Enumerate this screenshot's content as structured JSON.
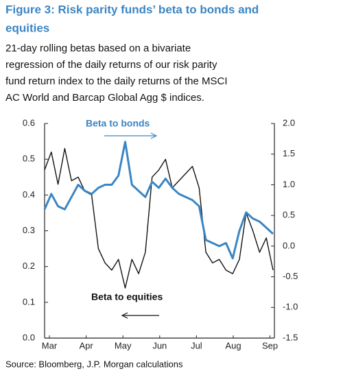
{
  "chart_data": {
    "type": "line",
    "title_lines": [
      "Figure 3: Risk parity funds’ beta to bonds and",
      "equities"
    ],
    "subtitle_lines": [
      "21-day rolling betas based on a bivariate",
      "regression of the daily returns of our risk parity",
      "fund return index to the daily returns of the MSCI",
      "AC World and Barcap Global Agg $ indices."
    ],
    "xtick_labels": [
      "Mar",
      "Apr",
      "May",
      "Jun",
      "Jul",
      "Aug",
      "Sep"
    ],
    "series": [
      {
        "name": "Beta to equities",
        "color": "#111111",
        "axis": "y",
        "values": [
          0.47,
          0.52,
          0.43,
          0.53,
          0.44,
          0.45,
          0.41,
          0.4,
          0.25,
          0.21,
          0.19,
          0.22,
          0.14,
          0.22,
          0.18,
          0.24,
          0.45,
          0.47,
          0.5,
          0.42,
          0.44,
          0.46,
          0.48,
          0.42,
          0.24,
          0.21,
          0.22,
          0.19,
          0.18,
          0.22,
          0.35,
          0.3,
          0.24,
          0.28,
          0.19
        ]
      },
      {
        "name": "Beta to bonds",
        "color": "#3a85c3",
        "axis": "y2",
        "values": [
          0.6,
          0.85,
          0.65,
          0.6,
          0.8,
          1.0,
          0.9,
          0.85,
          0.95,
          1.0,
          1.0,
          1.15,
          1.7,
          1.0,
          0.9,
          0.8,
          1.05,
          0.95,
          1.1,
          0.95,
          0.85,
          0.8,
          0.75,
          0.65,
          0.1,
          0.05,
          0.0,
          0.05,
          -0.2,
          0.25,
          0.55,
          0.45,
          0.4,
          0.3,
          0.2
        ]
      }
    ],
    "ylim": [
      0,
      0.6
    ],
    "yticks": [
      {
        "value": 0,
        "label": "0.0"
      },
      0.1,
      0.2,
      0.3,
      0.4,
      0.5,
      0.6
    ],
    "y2lim": [
      -1.5,
      2.0
    ],
    "y2ticks": [
      -1.5,
      {
        "value": -1.0,
        "label": "-1.0"
      },
      -0.5,
      {
        "value": 0,
        "label": "0.0"
      },
      0.5,
      {
        "value": 1.0,
        "label": "1.0"
      },
      1.5,
      {
        "value": 2.0,
        "label": "2.0"
      }
    ],
    "source": "Source: Bloomberg, J.P. Morgan calculations"
  }
}
